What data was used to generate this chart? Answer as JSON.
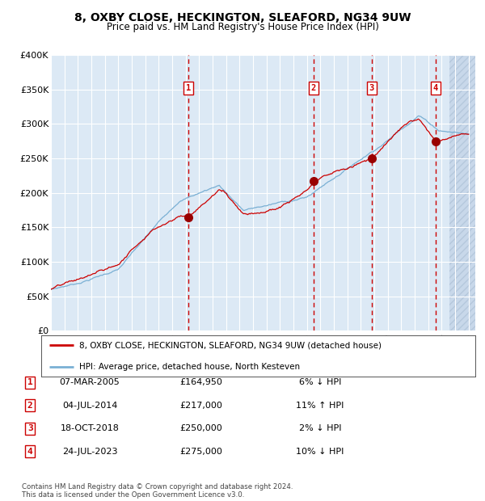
{
  "title": "8, OXBY CLOSE, HECKINGTON, SLEAFORD, NG34 9UW",
  "subtitle": "Price paid vs. HM Land Registry's House Price Index (HPI)",
  "legend_property": "8, OXBY CLOSE, HECKINGTON, SLEAFORD, NG34 9UW (detached house)",
  "legend_hpi": "HPI: Average price, detached house, North Kesteven",
  "footnote1": "Contains HM Land Registry data © Crown copyright and database right 2024.",
  "footnote2": "This data is licensed under the Open Government Licence v3.0.",
  "sales": [
    {
      "num": 1,
      "date": "07-MAR-2005",
      "price": 164950,
      "price_str": "£164,950",
      "pct": "6%",
      "dir": "↓",
      "year_x": 2005.18
    },
    {
      "num": 2,
      "date": "04-JUL-2014",
      "price": 217000,
      "price_str": "£217,000",
      "pct": "11%",
      "dir": "↑",
      "year_x": 2014.5
    },
    {
      "num": 3,
      "date": "18-OCT-2018",
      "price": 250000,
      "price_str": "£250,000",
      "pct": "2%",
      "dir": "↓",
      "year_x": 2018.8
    },
    {
      "num": 4,
      "date": "24-JUL-2023",
      "price": 275000,
      "price_str": "£275,000",
      "pct": "10%",
      "dir": "↓",
      "year_x": 2023.56
    }
  ],
  "ylim": [
    0,
    400000
  ],
  "xlim_start": 1995.0,
  "xlim_end": 2026.5,
  "plot_bg": "#dce9f5",
  "grid_color": "#ffffff",
  "red_line_color": "#cc0000",
  "blue_line_color": "#7ab0d4",
  "dashed_vline_color": "#cc0000",
  "sale_dot_color": "#990000",
  "label_box_edge": "#cc0000",
  "y_ticks": [
    0,
    50000,
    100000,
    150000,
    200000,
    250000,
    300000,
    350000,
    400000
  ],
  "y_tick_labels": [
    "£0",
    "£50K",
    "£100K",
    "£150K",
    "£200K",
    "£250K",
    "£300K",
    "£350K",
    "£400K"
  ],
  "x_ticks": [
    1995,
    1996,
    1997,
    1998,
    1999,
    2000,
    2001,
    2002,
    2003,
    2004,
    2005,
    2006,
    2007,
    2008,
    2009,
    2010,
    2011,
    2012,
    2013,
    2014,
    2015,
    2016,
    2017,
    2018,
    2019,
    2020,
    2021,
    2022,
    2023,
    2024,
    2025,
    2026
  ]
}
